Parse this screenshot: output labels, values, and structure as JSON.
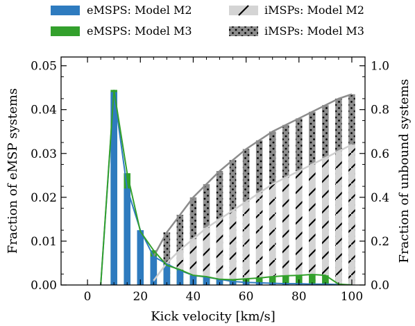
{
  "chart_data": {
    "type": "bar",
    "xlabel": "Kick velocity [km/s]",
    "ylabel_left": "Fraction of eMSP systems",
    "ylabel_right": "Fraction of unbound systems",
    "xlim": [
      -10,
      105
    ],
    "ylim_left": [
      0,
      0.052
    ],
    "ylim_right": [
      0,
      1.04
    ],
    "xticks": [
      0,
      20,
      40,
      60,
      80,
      100
    ],
    "yticks_left": [
      0.0,
      0.01,
      0.02,
      0.03,
      0.04,
      0.05
    ],
    "yticks_right": [
      0.0,
      0.2,
      0.4,
      0.6,
      0.8,
      1.0
    ],
    "ytick_labels_left": [
      "0.00",
      "0.01",
      "0.02",
      "0.03",
      "0.04",
      "0.05"
    ],
    "ytick_labels_right": [
      "0.0",
      "0.2",
      "0.4",
      "0.6",
      "0.8",
      "1.0"
    ],
    "xtick_labels": [
      "0",
      "20",
      "40",
      "60",
      "80",
      "100"
    ],
    "legend": [
      {
        "label": "eMSPS: Model M2",
        "color": "#2e7bbf",
        "style": "solid"
      },
      {
        "label": "eMSPS: Model M3",
        "color": "#33a02c",
        "style": "solid"
      },
      {
        "label": "iMSPs: Model M2",
        "color": "#d4d4d4",
        "style": "hatch"
      },
      {
        "label": "iMSPs: Model M3",
        "color": "#8c8c8c",
        "style": "dots"
      }
    ],
    "bar_width": 2.5,
    "emsp_series": [
      {
        "name": "eMSPS: Model M2",
        "axis": "left",
        "color": "#2e7bbf",
        "x": [
          5,
          10,
          15,
          20,
          25,
          30,
          35,
          40,
          45,
          50,
          55,
          60,
          65,
          70,
          75,
          80,
          85,
          90,
          95,
          100
        ],
        "values": [
          0.0,
          0.044,
          0.022,
          0.0125,
          0.0065,
          0.0048,
          0.0033,
          0.0022,
          0.0018,
          0.0013,
          0.0008,
          0.0006,
          0.0005,
          0.0004,
          0.0003,
          0.0003,
          0.0002,
          0.0002,
          0.0001,
          0.0
        ]
      },
      {
        "name": "eMSPS: Model M3",
        "axis": "left",
        "color": "#33a02c",
        "x": [
          5,
          10,
          15,
          20,
          25,
          30,
          35,
          40,
          45,
          50,
          55,
          60,
          65,
          70,
          75,
          80,
          85,
          90,
          95,
          100
        ],
        "values": [
          0.0,
          0.0445,
          0.0255,
          0.0122,
          0.0079,
          0.0045,
          0.0035,
          0.0022,
          0.0019,
          0.0013,
          0.0012,
          0.0014,
          0.0016,
          0.0019,
          0.0021,
          0.0022,
          0.0024,
          0.0022,
          0.0002,
          0.0
        ]
      }
    ],
    "imsp_series": [
      {
        "name": "iMSPs: Model M2",
        "axis": "right",
        "color": "#d4d4d4",
        "x": [
          25,
          30,
          35,
          40,
          45,
          50,
          55,
          60,
          65,
          70,
          75,
          80,
          85,
          90,
          95,
          100
        ],
        "values": [
          0.02,
          0.1,
          0.16,
          0.21,
          0.26,
          0.3,
          0.34,
          0.38,
          0.42,
          0.46,
          0.49,
          0.52,
          0.55,
          0.58,
          0.61,
          0.64
        ]
      },
      {
        "name": "iMSPs: Model M3",
        "axis": "right",
        "color": "#8c8c8c",
        "x": [
          25,
          30,
          35,
          40,
          45,
          50,
          55,
          60,
          65,
          70,
          75,
          80,
          85,
          90,
          95,
          100
        ],
        "values": [
          0.13,
          0.24,
          0.32,
          0.4,
          0.46,
          0.52,
          0.57,
          0.62,
          0.66,
          0.7,
          0.73,
          0.76,
          0.79,
          0.82,
          0.85,
          0.87
        ]
      }
    ]
  }
}
